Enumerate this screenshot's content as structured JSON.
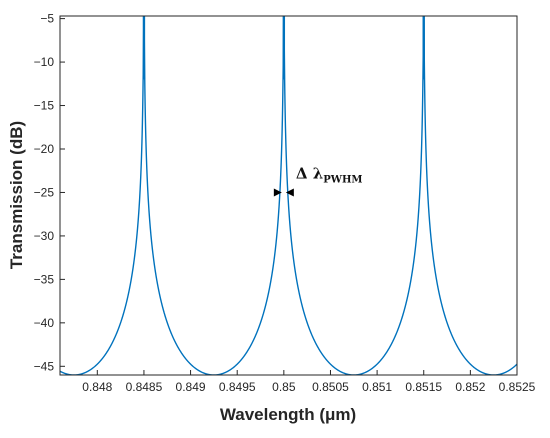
{
  "chart_data": {
    "type": "line",
    "title": "",
    "xlabel": "Wavelength (μm)",
    "ylabel": "Transmission (dB)",
    "xlim": [
      0.8476,
      0.8525
    ],
    "ylim": [
      -46,
      -4.7
    ],
    "xticks": [
      0.848,
      0.8485,
      0.849,
      0.8495,
      0.85,
      0.8505,
      0.851,
      0.8515,
      0.852,
      0.8525
    ],
    "xtick_labels": [
      "0.848",
      "0.8485",
      "0.849",
      "0.8495",
      "0.85",
      "0.8505",
      "0.851",
      "0.8515",
      "0.852",
      "0.8525"
    ],
    "yticks": [
      -5,
      -10,
      -15,
      -20,
      -25,
      -30,
      -35,
      -40,
      -45
    ],
    "ytick_labels": [
      "-5",
      "-10",
      "-15",
      "-20",
      "-25",
      "-30",
      "-35",
      "-40",
      "-45"
    ],
    "grid": false,
    "legend": false,
    "series": [
      {
        "color": "#0072BD",
        "resonances_um": [
          0.8485,
          0.85,
          0.8515
        ],
        "peak_db": -4.7,
        "minimum_db": -46,
        "linewidth_um": 2e-05
      }
    ],
    "annotations": [
      {
        "text": "Δ λ",
        "subscript": "PWHM",
        "x": 0.85,
        "y": -25,
        "arrow_extent_um": 0.0001
      }
    ]
  }
}
